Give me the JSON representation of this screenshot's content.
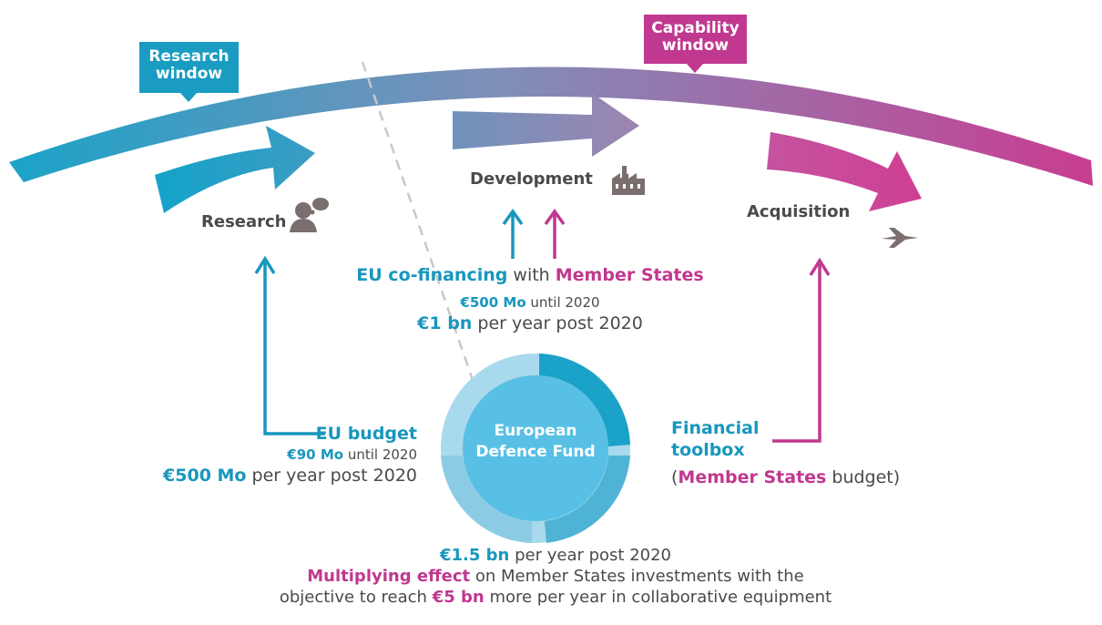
{
  "windows": {
    "research": {
      "line1": "Research",
      "line2": "window",
      "color": "#1a9cc2"
    },
    "capability": {
      "line1": "Capability",
      "line2": "window",
      "color": "#c0388f"
    }
  },
  "stages": {
    "research": {
      "label": "Research",
      "icon": "thinking-person-icon"
    },
    "development": {
      "label": "Development",
      "icon": "factory-icon"
    },
    "acquisition": {
      "label": "Acquisition",
      "icon": "fighter-jet-icon"
    }
  },
  "cofinancing": {
    "part1": "EU co-financing",
    "part2": " with ",
    "part3": "Member States",
    "line2_amount": "€500 Mo",
    "line2_rest": " until 2020",
    "line3_amount": "€1 bn",
    "line3_rest": " per year post 2020"
  },
  "eu_budget": {
    "title": "EU budget",
    "line2_amount": "€90 Mo",
    "line2_rest": " until 2020",
    "line3_amount": "€500 Mo",
    "line3_rest": " per year post 2020"
  },
  "toolbox": {
    "line1": "Financial",
    "line2": "toolbox",
    "line3_open": "(",
    "line3_bold": "Member States",
    "line3_rest": " budget)"
  },
  "fund": {
    "line1": "European",
    "line2": "Defence Fund"
  },
  "bottom": {
    "line1_amount": "€1.5 bn",
    "line1_rest": " per year post 2020",
    "line2_bold": "Multiplying effect",
    "line2_rest": " on Member States investments with the",
    "line3_start": "objective to reach ",
    "line3_bold": "€5 bn",
    "line3_rest": " more per year in collaborative equipment"
  },
  "colors": {
    "teal": "#1797bd",
    "pink": "#c0388f",
    "grey": "#7a6e6e"
  }
}
